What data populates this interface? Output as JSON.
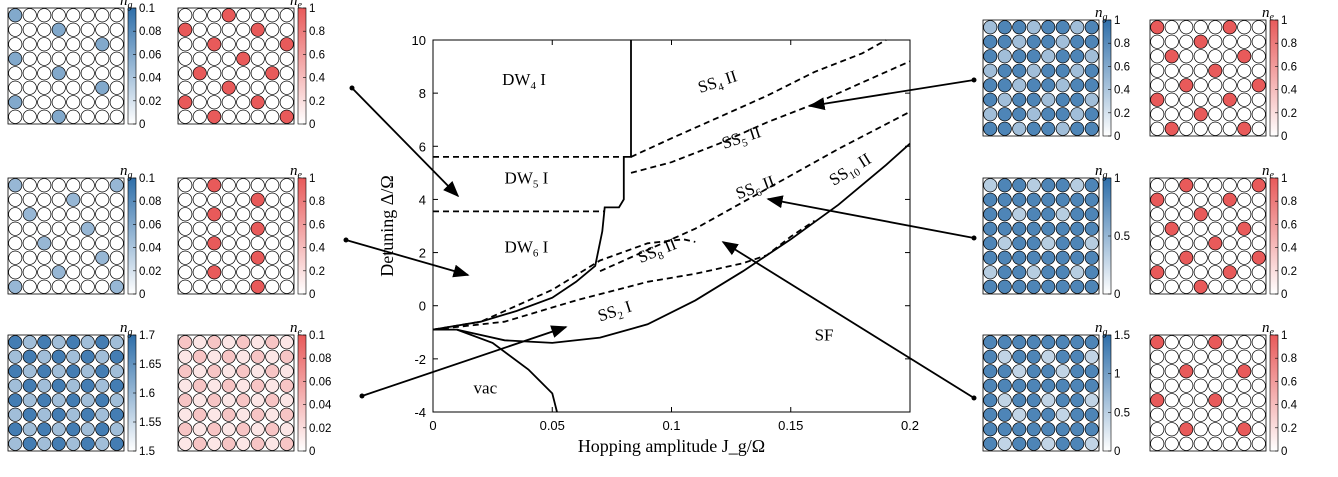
{
  "chart_data": {
    "type": "phase-diagram",
    "title": "",
    "xlabel": "Hopping amplitude J_g/Ω",
    "ylabel": "Detuning Δ/Ω",
    "xlim": [
      0,
      0.2
    ],
    "ylim": [
      -4,
      10
    ],
    "xticks": [
      "0",
      "0.05",
      "0.1",
      "0.15",
      "0.2"
    ],
    "yticks": [
      "-4",
      "-2",
      "0",
      "2",
      "4",
      "6",
      "8",
      "10"
    ],
    "boundaries": [
      {
        "style": "solid",
        "points": [
          [
            0.083,
            10
          ],
          [
            0.083,
            5.6
          ],
          [
            0.08,
            5.6
          ],
          [
            0.08,
            4.0
          ],
          [
            0.078,
            3.7
          ],
          [
            0.072,
            3.7
          ],
          [
            0.071,
            2.8
          ],
          [
            0.068,
            1.5
          ],
          [
            0.06,
            0.9
          ],
          [
            0.05,
            0.3
          ],
          [
            0.035,
            -0.2
          ],
          [
            0.02,
            -0.6
          ],
          [
            0,
            -0.9
          ]
        ]
      },
      {
        "style": "solid",
        "points": [
          [
            0,
            -0.9
          ],
          [
            0.01,
            -0.9
          ],
          [
            0.03,
            -1.3
          ],
          [
            0.05,
            -1.4
          ],
          [
            0.07,
            -1.2
          ],
          [
            0.09,
            -0.7
          ],
          [
            0.11,
            0.2
          ],
          [
            0.13,
            1.3
          ],
          [
            0.15,
            2.5
          ],
          [
            0.17,
            3.8
          ],
          [
            0.19,
            5.3
          ],
          [
            0.2,
            6.1
          ]
        ]
      },
      {
        "style": "solid",
        "points": [
          [
            0.01,
            -0.9
          ],
          [
            0.025,
            -1.4
          ],
          [
            0.04,
            -2.4
          ],
          [
            0.05,
            -3.3
          ],
          [
            0.052,
            -4
          ]
        ]
      },
      {
        "style": "dashed",
        "points": [
          [
            0,
            5.6
          ],
          [
            0.08,
            5.6
          ]
        ]
      },
      {
        "style": "dashed",
        "points": [
          [
            0,
            3.55
          ],
          [
            0.072,
            3.55
          ]
        ]
      },
      {
        "style": "dashed",
        "points": [
          [
            0.083,
            5.6
          ],
          [
            0.1,
            6.3
          ],
          [
            0.12,
            7.1
          ],
          [
            0.14,
            7.9
          ],
          [
            0.16,
            8.8
          ],
          [
            0.18,
            9.5
          ],
          [
            0.19,
            10
          ]
        ]
      },
      {
        "style": "dashed",
        "points": [
          [
            0.083,
            5.0
          ],
          [
            0.1,
            5.4
          ],
          [
            0.12,
            6.1
          ],
          [
            0.14,
            6.9
          ],
          [
            0.16,
            7.6
          ],
          [
            0.18,
            8.4
          ],
          [
            0.2,
            9.2
          ]
        ]
      },
      {
        "style": "dashed",
        "points": [
          [
            0.07,
            1.3
          ],
          [
            0.09,
            2.1
          ],
          [
            0.11,
            2.9
          ],
          [
            0.13,
            3.9
          ],
          [
            0.15,
            4.9
          ],
          [
            0.17,
            5.9
          ],
          [
            0.2,
            7.3
          ]
        ]
      },
      {
        "style": "dashed",
        "points": [
          [
            0,
            -0.9
          ],
          [
            0.02,
            -0.6
          ],
          [
            0.05,
            0.6
          ],
          [
            0.07,
            1.7
          ],
          [
            0.09,
            2.35
          ],
          [
            0.105,
            2.5
          ],
          [
            0.11,
            2.4
          ]
        ]
      },
      {
        "style": "dashed",
        "points": [
          [
            0,
            -0.9
          ],
          [
            0.03,
            -0.6
          ],
          [
            0.06,
            0.2
          ],
          [
            0.09,
            0.9
          ],
          [
            0.11,
            1.2
          ],
          [
            0.13,
            1.6
          ],
          [
            0.14,
            1.9
          ],
          [
            0.15,
            2.6
          ],
          [
            0.16,
            3.2
          ]
        ]
      }
    ],
    "regions": [
      {
        "base": "DW",
        "sub": "4",
        "suffix": " I",
        "x": 0.029,
        "y": 8.3,
        "rot": 0
      },
      {
        "base": "DW",
        "sub": "5",
        "suffix": " I",
        "x": 0.03,
        "y": 4.6,
        "rot": 0
      },
      {
        "base": "DW",
        "sub": "6",
        "suffix": " I",
        "x": 0.03,
        "y": 2.0,
        "rot": 0
      },
      {
        "base": "SS",
        "sub": "4",
        "suffix": " II",
        "x": 0.112,
        "y": 8.0,
        "rot": -18
      },
      {
        "base": "SS",
        "sub": "5",
        "suffix": " II",
        "x": 0.122,
        "y": 5.9,
        "rot": -18
      },
      {
        "base": "SS",
        "sub": "6",
        "suffix": " II",
        "x": 0.128,
        "y": 4.0,
        "rot": -20
      },
      {
        "base": "SS",
        "sub": "10",
        "suffix": " II",
        "x": 0.168,
        "y": 4.5,
        "rot": -32
      },
      {
        "base": "SS",
        "sub": "8",
        "suffix": " II",
        "x": 0.087,
        "y": 1.6,
        "rot": -22
      },
      {
        "base": "SS",
        "sub": "2",
        "suffix": " I",
        "x": 0.07,
        "y": -0.6,
        "rot": -18
      },
      {
        "base": "SF",
        "sub": "",
        "suffix": "",
        "x": 0.16,
        "y": -1.3,
        "rot": 0
      },
      {
        "base": "vac",
        "sub": "",
        "suffix": "",
        "x": 0.017,
        "y": -3.3,
        "rot": 0
      }
    ],
    "panels": [
      {
        "id": "L1",
        "kind": "g",
        "cb": [
          "0.1",
          "0.08",
          "0.06",
          "0.04",
          "0.02",
          "0"
        ],
        "label": "n_g"
      },
      {
        "id": "L1e",
        "kind": "e",
        "cb": [
          "1",
          "0.8",
          "0.6",
          "0.4",
          "0.2",
          "0"
        ],
        "label": "n_e"
      },
      {
        "id": "L2",
        "kind": "g",
        "cb": [
          "0.1",
          "0.08",
          "0.06",
          "0.04",
          "0.02",
          "0"
        ],
        "label": "n_g"
      },
      {
        "id": "L2e",
        "kind": "e",
        "cb": [
          "1",
          "0.8",
          "0.6",
          "0.4",
          "0.2",
          "0"
        ],
        "label": "n_e"
      },
      {
        "id": "L3",
        "kind": "g",
        "cb": [
          "1.7",
          "1.65",
          "1.6",
          "1.55",
          "1.5"
        ],
        "label": "n_g"
      },
      {
        "id": "L3e",
        "kind": "e",
        "cb": [
          "0.1",
          "0.08",
          "0.06",
          "0.04",
          "0.02",
          "0"
        ],
        "label": "n_e"
      },
      {
        "id": "R1",
        "kind": "g",
        "cb": [
          "1",
          "0.8",
          "0.6",
          "0.4",
          "0.2",
          "0"
        ],
        "label": "n_g"
      },
      {
        "id": "R1e",
        "kind": "e",
        "cb": [
          "1",
          "0.8",
          "0.6",
          "0.4",
          "0.2",
          "0"
        ],
        "label": "n_e"
      },
      {
        "id": "R2",
        "kind": "g",
        "cb": [
          "1",
          "0.5",
          "0"
        ],
        "label": "n_g"
      },
      {
        "id": "R2e",
        "kind": "e",
        "cb": [
          "1",
          "0.8",
          "0.6",
          "0.4",
          "0.2",
          "0"
        ],
        "label": "n_e"
      },
      {
        "id": "R3",
        "kind": "g",
        "cb": [
          "1.5",
          "1",
          "0.5",
          "0"
        ],
        "label": "n_g"
      },
      {
        "id": "R3e",
        "kind": "e",
        "cb": [
          "1",
          "0.8",
          "0.6",
          "0.4",
          "0.2",
          "0"
        ],
        "label": "n_e"
      }
    ]
  }
}
